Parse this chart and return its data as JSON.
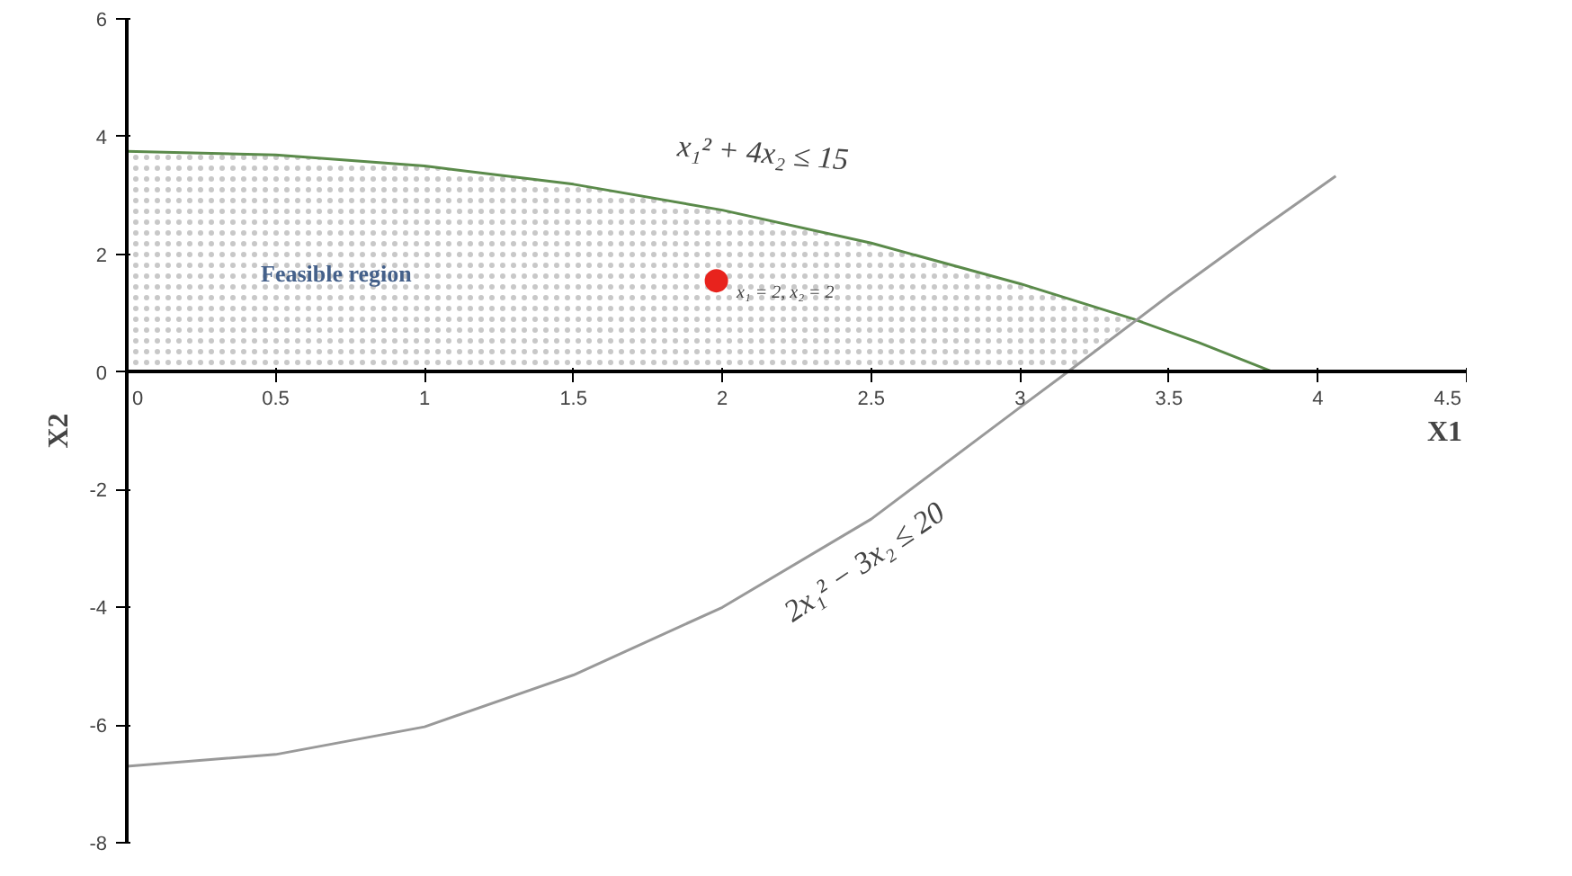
{
  "chart_data": {
    "type": "line",
    "xlabel": "X1",
    "ylabel": "X2",
    "xlim": [
      0,
      4.5
    ],
    "ylim": [
      -8,
      6
    ],
    "xticks": [
      0,
      0.5,
      1,
      1.5,
      2,
      2.5,
      3,
      3.5,
      4,
      4.5
    ],
    "yticks": [
      -8,
      -6,
      -4,
      -2,
      0,
      2,
      4,
      6
    ],
    "grid": false,
    "marker": "none",
    "line_style": "solid",
    "series": [
      {
        "type": "area",
        "color": "#c8c8c8",
        "x": [
          0,
          0.5,
          1,
          1.5,
          2,
          2.5,
          3,
          3.38,
          3.16,
          0
        ],
        "values": [
          3.75,
          3.69,
          3.5,
          3.19,
          2.75,
          2.19,
          1.5,
          0.9,
          0,
          0
        ]
      },
      {
        "color": "#5a8a4a",
        "x": [
          0,
          0.5,
          1,
          1.5,
          2,
          2.5,
          3,
          3.38,
          3.6,
          3.85
        ],
        "values": [
          3.75,
          3.69,
          3.5,
          3.19,
          2.75,
          2.19,
          1.5,
          0.9,
          0.5,
          0
        ]
      },
      {
        "color": "#999999",
        "x": [
          0,
          0.5,
          1,
          1.5,
          2,
          2.5,
          3,
          3.16,
          3.5,
          3.8,
          4.06
        ],
        "values": [
          -6.7,
          -6.5,
          -6.03,
          -5.15,
          -4.0,
          -2.5,
          -0.6,
          0,
          1.3,
          2.4,
          3.33
        ]
      },
      {
        "type": "scatter",
        "marker": "circle",
        "color": "#e8231d",
        "x": [
          1.98
        ],
        "values": [
          1.55
        ]
      }
    ],
    "annotations": [
      "x₁² + 4x₂ ≤ 15",
      "2x₁² − 3x₂ ≤ 20",
      "x₁ = 2, x₂ = 2",
      "Feasible region"
    ]
  }
}
